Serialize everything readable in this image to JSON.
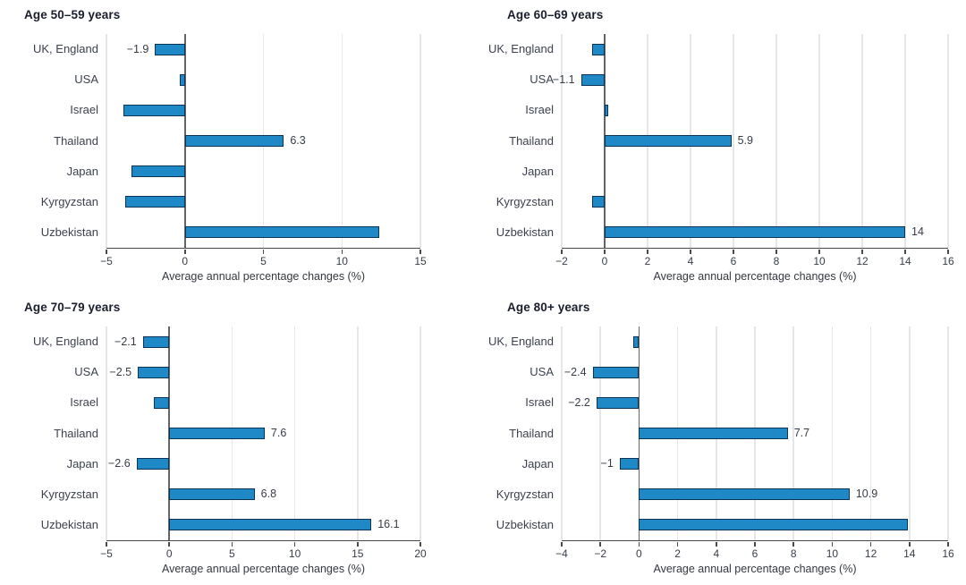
{
  "figure": {
    "description": "Four horizontal bar charts of average annual percentage changes by country and age group",
    "xlabel": "Average annual percentage changes (%)",
    "categories": [
      "UK, England",
      "USA",
      "Israel",
      "Thailand",
      "Japan",
      "Kyrgyzstan",
      "Uzbekistan"
    ]
  },
  "chart_data": [
    {
      "type": "bar",
      "orientation": "horizontal",
      "title": "Age 50–59 years",
      "xlabel": "Average annual percentage changes (%)",
      "categories": [
        "UK, England",
        "USA",
        "Israel",
        "Thailand",
        "Japan",
        "Kyrgyzstan",
        "Uzbekistan"
      ],
      "values": [
        -1.9,
        -0.3,
        -3.9,
        6.3,
        -3.4,
        -3.8,
        12.4
      ],
      "value_labels": [
        "−1.9",
        null,
        null,
        "6.3",
        null,
        null,
        null
      ],
      "xlim": [
        -5,
        15
      ],
      "xtick_step": 5,
      "grid": true
    },
    {
      "type": "bar",
      "orientation": "horizontal",
      "title": "Age 60–69 years",
      "xlabel": "Average annual percentage changes (%)",
      "categories": [
        "UK, England",
        "USA",
        "Israel",
        "Thailand",
        "Japan",
        "Kyrgyzstan",
        "Uzbekistan"
      ],
      "values": [
        -0.6,
        -1.1,
        0.15,
        5.9,
        0,
        -0.6,
        14
      ],
      "value_labels": [
        null,
        "−1.1",
        null,
        "5.9",
        null,
        null,
        "14"
      ],
      "xlim": [
        -2,
        16
      ],
      "xtick_step": 2,
      "grid": true
    },
    {
      "type": "bar",
      "orientation": "horizontal",
      "title": "Age 70–79 years",
      "xlabel": "Average annual percentage changes (%)",
      "categories": [
        "UK, England",
        "USA",
        "Israel",
        "Thailand",
        "Japan",
        "Kyrgyzstan",
        "Uzbekistan"
      ],
      "values": [
        -2.1,
        -2.5,
        -1.2,
        7.6,
        -2.6,
        6.8,
        16.1
      ],
      "value_labels": [
        "−2.1",
        "−2.5",
        null,
        "7.6",
        "−2.6",
        "6.8",
        "16.1"
      ],
      "xlim": [
        -5,
        20
      ],
      "xtick_step": 5,
      "grid": true
    },
    {
      "type": "bar",
      "orientation": "horizontal",
      "title": "Age 80+ years",
      "xlabel": "Average annual percentage changes (%)",
      "categories": [
        "UK, England",
        "USA",
        "Israel",
        "Thailand",
        "Japan",
        "Kyrgyzstan",
        "Uzbekistan"
      ],
      "values": [
        -0.3,
        -2.4,
        -2.2,
        7.7,
        -1,
        10.9,
        13.9
      ],
      "value_labels": [
        null,
        "−2.4",
        "−2.2",
        "7.7",
        "−1",
        "10.9",
        null
      ],
      "xlim": [
        -4,
        16
      ],
      "xtick_step": 2,
      "grid": true
    }
  ],
  "style": {
    "bar_fill": "#1f88c7",
    "bar_border": "#0d3456",
    "gridline": "#e4e7e8",
    "axis_line": "#4a4a4a",
    "zero_axis": "#636567",
    "title_color": "#1a1e2c",
    "label_color": "#3c414d"
  }
}
